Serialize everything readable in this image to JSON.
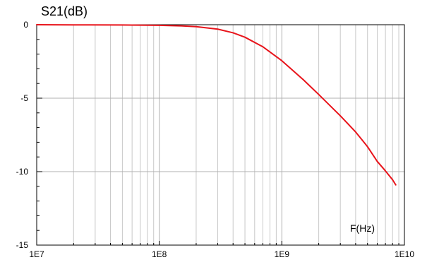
{
  "chart_data": {
    "type": "line",
    "title": "",
    "xlabel": "F(Hz)",
    "ylabel": "S21(dB)",
    "x_scale": "log",
    "xlim": [
      10000000,
      10000000000
    ],
    "ylim": [
      -15,
      0
    ],
    "x_ticks": [
      "1E7",
      "1E8",
      "1E9",
      "1E10"
    ],
    "y_ticks": [
      "0",
      "-5",
      "-10",
      "-15"
    ],
    "grid": true,
    "series": [
      {
        "color": "#e8141b",
        "x": [
          10000000,
          20000000,
          50000000,
          100000000,
          150000000,
          200000000,
          300000000,
          400000000,
          500000000,
          700000000,
          1000000000,
          1500000000,
          2000000000,
          3000000000,
          4000000000,
          5000000000,
          6000000000,
          7000000000,
          8000000000,
          8500000000
        ],
        "y": [
          0,
          -0.01,
          -0.02,
          -0.04,
          -0.08,
          -0.13,
          -0.3,
          -0.55,
          -0.85,
          -1.5,
          -2.45,
          -3.75,
          -4.75,
          -6.2,
          -7.3,
          -8.3,
          -9.3,
          -9.95,
          -10.55,
          -10.9
        ]
      }
    ]
  }
}
